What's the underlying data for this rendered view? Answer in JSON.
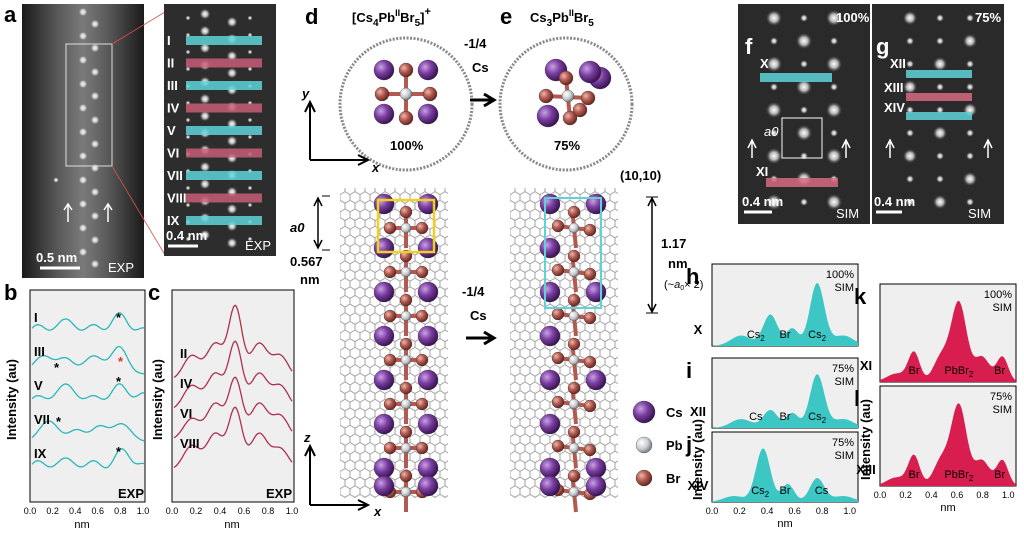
{
  "panels": {
    "a": {
      "letter": "a",
      "scale1": "0.5 nm",
      "tag1": "EXP",
      "scale2": "0.4 nm",
      "tag2": "EXP",
      "rows": [
        "I",
        "II",
        "III",
        "IV",
        "V",
        "VI",
        "VII",
        "VIII",
        "IX"
      ]
    },
    "b": {
      "letter": "b",
      "ylabel": "Intensity (au)",
      "xlabel": "nm",
      "tag": "EXP",
      "rows": [
        "I",
        "III",
        "V",
        "VII",
        "IX"
      ],
      "ticks": [
        "0.0",
        "0.2",
        "0.4",
        "0.6",
        "0.8",
        "1.0"
      ]
    },
    "c": {
      "letter": "c",
      "ylabel": "Intensity (au)",
      "xlabel": "nm",
      "tag": "EXP",
      "rows": [
        "II",
        "IV",
        "VI",
        "VIII"
      ],
      "ticks": [
        "0.0",
        "0.2",
        "0.4",
        "0.6",
        "0.8",
        "1.0"
      ]
    },
    "d": {
      "letter": "d",
      "title": "[Cs4PbIIBr5]+",
      "percent": "100%",
      "axis_y": "y",
      "axis_x": "x",
      "axis_z": "z",
      "axis_x2": "x",
      "a0": "a0",
      "a0_value": "0.567",
      "a0_unit": "nm"
    },
    "e": {
      "letter": "e",
      "title": "Cs3PbIIBr5",
      "percent": "75%",
      "chirality": "(10,10)",
      "length_value": "1.17",
      "length_unit": "nm",
      "length_note": "(~a0× 2)"
    },
    "arrow_label": {
      "top1": "-1/4",
      "top2": "Cs",
      "mid1": "-1/4",
      "mid2": "Cs"
    },
    "legend": [
      {
        "label": "Cs",
        "color": "#7a3ea0"
      },
      {
        "label": "Pb",
        "color": "#c9ced2"
      },
      {
        "label": "Br",
        "color": "#b25a50"
      }
    ],
    "f": {
      "letter": "f",
      "percent": "100%",
      "tag": "SIM",
      "scale": "0.4 nm",
      "a0": "a0",
      "rows": [
        "X",
        "XI"
      ]
    },
    "g": {
      "letter": "g",
      "percent": "75%",
      "tag": "SIM",
      "scale": "0.4 nm",
      "rows": [
        "XII",
        "XIII",
        "XIV"
      ]
    },
    "h": {
      "letter": "h",
      "pct": "100%",
      "sim": "SIM",
      "row": "X",
      "peaks": [
        "Cs2",
        "Br",
        "Cs2"
      ]
    },
    "i": {
      "letter": "i",
      "pct": "75%",
      "sim": "SIM",
      "row": "XII",
      "peaks": [
        "Cs",
        "Br",
        "Cs2"
      ]
    },
    "j": {
      "letter": "j",
      "pct": "75%",
      "sim": "SIM",
      "row": "XIV",
      "peaks": [
        "Cs2",
        "Br",
        "Cs"
      ],
      "ylabel": "Intensity (au)",
      "xlabel": "nm",
      "ticks": [
        "0.0",
        "0.2",
        "0.4",
        "0.6",
        "0.8",
        "1.0"
      ]
    },
    "k": {
      "letter": "k",
      "pct": "100%",
      "sim": "SIM",
      "row": "XI",
      "peaks": [
        "Br",
        "PbBr2",
        "Br"
      ]
    },
    "l": {
      "letter": "l",
      "pct": "75%",
      "sim": "SIM",
      "row": "XIII",
      "peaks": [
        "Br",
        "PbBr2",
        "Br"
      ],
      "ylabel": "Intensity (au)",
      "xlabel": "nm",
      "ticks": [
        "0.0",
        "0.2",
        "0.4",
        "0.6",
        "0.8",
        "1.0"
      ]
    }
  },
  "colors": {
    "teal": "#3cc7c4",
    "pink": "#d81e4e",
    "crimson_line": "#b0304e",
    "cyan_line": "#2bb7b8"
  }
}
